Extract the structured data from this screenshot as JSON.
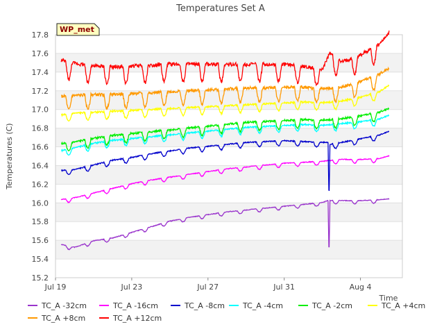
{
  "chart_data": {
    "type": "line",
    "title": "Temperatures Set A",
    "xlabel": "Time",
    "ylabel": "Temperatures (C)",
    "badge": "WP_met",
    "x_start": "Jul 19",
    "x_end": "Aug 5",
    "xlim_days": [
      0,
      18.2
    ],
    "ylim": [
      15.2,
      17.8
    ],
    "y_ticks": [
      "15.2",
      "15.4",
      "15.6",
      "15.8",
      "16.0",
      "16.2",
      "16.4",
      "16.6",
      "16.8",
      "17.0",
      "17.2",
      "17.4",
      "17.6",
      "17.8"
    ],
    "x_ticks": [
      "Jul 19",
      "Jul 23",
      "Jul 27",
      "Jul 31",
      "Aug 4"
    ],
    "x_tick_days": [
      0,
      4,
      8,
      12,
      16
    ],
    "grid": true,
    "legend_position": "bottom",
    "series": [
      {
        "name": "TC_A -32cm",
        "color": "#9933cc",
        "values": [
          [
            0.3,
            15.55
          ],
          [
            1,
            15.52
          ],
          [
            2,
            15.59
          ],
          [
            3,
            15.62
          ],
          [
            4,
            15.68
          ],
          [
            5,
            15.74
          ],
          [
            6,
            15.8
          ],
          [
            7,
            15.84
          ],
          [
            8,
            15.87
          ],
          [
            9,
            15.9
          ],
          [
            10,
            15.92
          ],
          [
            11,
            15.94
          ],
          [
            12,
            15.96
          ],
          [
            13,
            15.98
          ],
          [
            14,
            16.0
          ],
          [
            14.3,
            16.02
          ],
          [
            14.35,
            15.4
          ],
          [
            14.4,
            16.02
          ],
          [
            15,
            16.02
          ],
          [
            16,
            16.02
          ],
          [
            17,
            16.03
          ],
          [
            17.5,
            16.04
          ]
        ],
        "amp": 0.03
      },
      {
        "name": "TC_A -16cm",
        "color": "#ff00ff",
        "values": [
          [
            0.3,
            16.03
          ],
          [
            1,
            16.05
          ],
          [
            2,
            16.1
          ],
          [
            3,
            16.15
          ],
          [
            4,
            16.2
          ],
          [
            5,
            16.24
          ],
          [
            6,
            16.27
          ],
          [
            7,
            16.3
          ],
          [
            8,
            16.33
          ],
          [
            9,
            16.36
          ],
          [
            10,
            16.38
          ],
          [
            11,
            16.4
          ],
          [
            12,
            16.42
          ],
          [
            13,
            16.43
          ],
          [
            14,
            16.44
          ],
          [
            15,
            16.46
          ],
          [
            16,
            16.46
          ],
          [
            17,
            16.47
          ],
          [
            17.5,
            16.5
          ]
        ],
        "amp": 0.035
      },
      {
        "name": "TC_A -8cm",
        "color": "#0000cc",
        "values": [
          [
            0.3,
            16.34
          ],
          [
            1,
            16.35
          ],
          [
            2,
            16.4
          ],
          [
            3,
            16.45
          ],
          [
            4,
            16.48
          ],
          [
            5,
            16.52
          ],
          [
            6,
            16.55
          ],
          [
            7,
            16.58
          ],
          [
            8,
            16.6
          ],
          [
            9,
            16.62
          ],
          [
            10,
            16.64
          ],
          [
            11,
            16.65
          ],
          [
            12,
            16.66
          ],
          [
            13,
            16.65
          ],
          [
            14,
            16.64
          ],
          [
            14.3,
            16.64
          ],
          [
            14.35,
            16.0
          ],
          [
            14.4,
            16.62
          ],
          [
            15,
            16.64
          ],
          [
            16,
            16.68
          ],
          [
            17,
            16.72
          ],
          [
            17.5,
            16.76
          ]
        ],
        "amp": 0.045
      },
      {
        "name": "TC_A -4cm",
        "color": "#00ffff",
        "values": [
          [
            0.3,
            16.55
          ],
          [
            1,
            16.58
          ],
          [
            2,
            16.63
          ],
          [
            3,
            16.66
          ],
          [
            4,
            16.68
          ],
          [
            5,
            16.7
          ],
          [
            6,
            16.72
          ],
          [
            7,
            16.74
          ],
          [
            8,
            16.76
          ],
          [
            9,
            16.78
          ],
          [
            10,
            16.8
          ],
          [
            11,
            16.81
          ],
          [
            12,
            16.82
          ],
          [
            13,
            16.83
          ],
          [
            14,
            16.82
          ],
          [
            15,
            16.84
          ],
          [
            16,
            16.86
          ],
          [
            17,
            16.89
          ],
          [
            17.5,
            16.93
          ]
        ],
        "amp": 0.06
      },
      {
        "name": "TC_A -2cm",
        "color": "#00ee00",
        "values": [
          [
            0.3,
            16.62
          ],
          [
            1,
            16.64
          ],
          [
            2,
            16.68
          ],
          [
            3,
            16.71
          ],
          [
            4,
            16.73
          ],
          [
            5,
            16.75
          ],
          [
            6,
            16.77
          ],
          [
            7,
            16.79
          ],
          [
            8,
            16.81
          ],
          [
            9,
            16.83
          ],
          [
            10,
            16.85
          ],
          [
            11,
            16.86
          ],
          [
            12,
            16.87
          ],
          [
            13,
            16.88
          ],
          [
            14,
            16.87
          ],
          [
            15,
            16.89
          ],
          [
            16,
            16.92
          ],
          [
            17,
            16.96
          ],
          [
            17.5,
            17.0
          ]
        ],
        "amp": 0.08
      },
      {
        "name": "TC_A +4cm",
        "color": "#ffff00",
        "values": [
          [
            0.3,
            16.93
          ],
          [
            1,
            16.95
          ],
          [
            2,
            16.96
          ],
          [
            3,
            16.97
          ],
          [
            4,
            16.98
          ],
          [
            5,
            16.99
          ],
          [
            6,
            17.0
          ],
          [
            7,
            17.01
          ],
          [
            8,
            17.02
          ],
          [
            9,
            17.03
          ],
          [
            10,
            17.04
          ],
          [
            11,
            17.05
          ],
          [
            12,
            17.06
          ],
          [
            13,
            17.07
          ],
          [
            14,
            17.06
          ],
          [
            15,
            17.08
          ],
          [
            16,
            17.12
          ],
          [
            17,
            17.18
          ],
          [
            17.5,
            17.25
          ]
        ],
        "amp": 0.07
      },
      {
        "name": "TC_A +8cm",
        "color": "#ff9900",
        "values": [
          [
            0.3,
            17.12
          ],
          [
            1,
            17.13
          ],
          [
            2,
            17.14
          ],
          [
            3,
            17.14
          ],
          [
            4,
            17.15
          ],
          [
            5,
            17.16
          ],
          [
            6,
            17.17
          ],
          [
            7,
            17.18
          ],
          [
            8,
            17.19
          ],
          [
            9,
            17.2
          ],
          [
            10,
            17.21
          ],
          [
            11,
            17.21
          ],
          [
            12,
            17.22
          ],
          [
            13,
            17.22
          ],
          [
            14,
            17.2
          ],
          [
            15,
            17.22
          ],
          [
            16,
            17.28
          ],
          [
            17,
            17.36
          ],
          [
            17.5,
            17.42
          ]
        ],
        "amp": 0.13
      },
      {
        "name": "TC_A +12cm",
        "color": "#ff0000",
        "values": [
          [
            0.3,
            17.5
          ],
          [
            1,
            17.47
          ],
          [
            2,
            17.44
          ],
          [
            3,
            17.43
          ],
          [
            4,
            17.44
          ],
          [
            5,
            17.45
          ],
          [
            6,
            17.46
          ],
          [
            7,
            17.46
          ],
          [
            8,
            17.46
          ],
          [
            9,
            17.46
          ],
          [
            10,
            17.46
          ],
          [
            11,
            17.46
          ],
          [
            12,
            17.46
          ],
          [
            13,
            17.44
          ],
          [
            14,
            17.4
          ],
          [
            14.4,
            17.58
          ],
          [
            15,
            17.48
          ],
          [
            16,
            17.56
          ],
          [
            17,
            17.68
          ],
          [
            17.5,
            17.8
          ]
        ],
        "amp": 0.16
      }
    ]
  }
}
